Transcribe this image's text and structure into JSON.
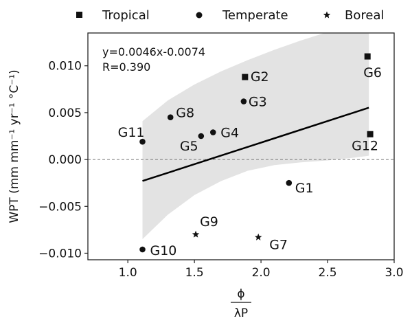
{
  "chart_data": {
    "type": "scatter",
    "xlim": [
      0.7,
      3.0
    ],
    "ylim": [
      -0.0107,
      0.0135
    ],
    "x_ticks": [
      1.0,
      1.5,
      2.0,
      2.5,
      3.0
    ],
    "x_tick_labels": [
      "1.0",
      "1.5",
      "2.0",
      "2.5",
      "3.0"
    ],
    "y_ticks": [
      -0.01,
      -0.005,
      0.0,
      0.005,
      0.01
    ],
    "y_tick_labels": [
      "−0.010",
      "−0.005",
      "0.000",
      "0.005",
      "0.010"
    ],
    "xlabel": {
      "numerator": "ϕ",
      "denominator": "λP"
    },
    "ylabel": "WPT (mm mm⁻¹ yr⁻¹ °C⁻¹)",
    "equation": "y=0.0046x-0.0074",
    "r_text": "R=0.390",
    "zero_line": {
      "y": 0.0,
      "style": "dashed"
    },
    "fit_line": {
      "slope": 0.0046,
      "intercept": -0.0074,
      "x_range": [
        1.11,
        2.81
      ]
    },
    "confidence_band": {
      "x": [
        1.11,
        1.3,
        1.5,
        1.7,
        1.9,
        2.1,
        2.3,
        2.5,
        2.7,
        2.81
      ],
      "upper": [
        0.0041,
        0.0063,
        0.008,
        0.0094,
        0.0106,
        0.0117,
        0.0127,
        0.0136,
        0.0145,
        0.015
      ],
      "lower": [
        -0.0085,
        -0.0059,
        -0.0038,
        -0.0023,
        -0.0012,
        -0.0006,
        -0.0003,
        -0.0001,
        0.0002,
        0.0004
      ]
    },
    "legend": {
      "placement": "top, outside plot",
      "entries": [
        "Tropical",
        "Temperate",
        "Boreal"
      ]
    },
    "series": [
      {
        "name": "Tropical",
        "marker": "square",
        "points": [
          {
            "label": "G2",
            "x": 1.88,
            "y": 0.0088
          },
          {
            "label": "G6",
            "x": 2.8,
            "y": 0.011
          },
          {
            "label": "G12",
            "x": 2.82,
            "y": 0.0027
          }
        ]
      },
      {
        "name": "Temperate",
        "marker": "circle",
        "points": [
          {
            "label": "G3",
            "x": 1.87,
            "y": 0.0062
          },
          {
            "label": "G8",
            "x": 1.32,
            "y": 0.0045
          },
          {
            "label": "G11",
            "x": 1.11,
            "y": 0.0019
          },
          {
            "label": "G5",
            "x": 1.55,
            "y": 0.0025
          },
          {
            "label": "G4",
            "x": 1.64,
            "y": 0.0029
          },
          {
            "label": "G1",
            "x": 2.21,
            "y": -0.0025
          },
          {
            "label": "G10",
            "x": 1.11,
            "y": -0.0096
          }
        ]
      },
      {
        "name": "Boreal",
        "marker": "star",
        "points": [
          {
            "label": "G9",
            "x": 1.51,
            "y": -0.008
          },
          {
            "label": "G7",
            "x": 1.98,
            "y": -0.0083
          }
        ]
      }
    ]
  },
  "colors": {
    "markers": "#111111",
    "band": "#e3e3e3",
    "fit": "#000000",
    "zero_line": "#777777",
    "axes": "#222222"
  }
}
